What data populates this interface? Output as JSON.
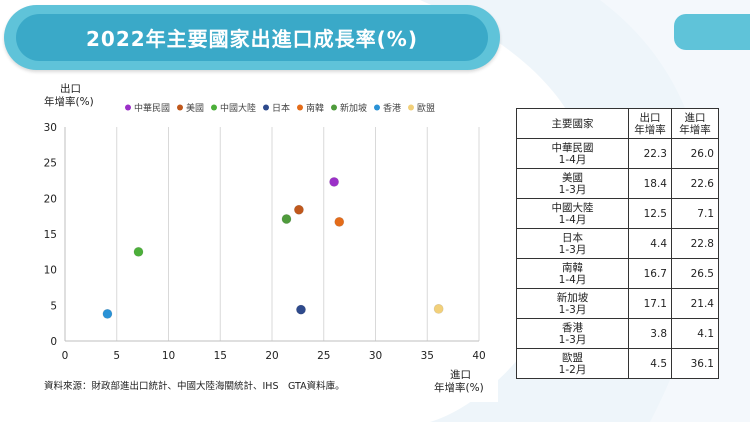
{
  "title": "2022年主要國家出進口成長率(%)",
  "source": "資料來源：財政部進出口統計、中國大陸海關統計、IHS　GTA資料庫。",
  "chart_data": {
    "type": "scatter",
    "ylabel_line1": "出口",
    "ylabel_line2": "年增率(%)",
    "xlabel_line1": "進口",
    "xlabel_line2": "年增率(%)",
    "xlim": [
      0,
      40
    ],
    "ylim": [
      0,
      30
    ],
    "xticks": [
      "0",
      "5",
      "10",
      "15",
      "20",
      "25",
      "30",
      "35",
      "40"
    ],
    "yticks": [
      "0",
      "5",
      "10",
      "15",
      "20",
      "25",
      "30"
    ],
    "grid": "vertical",
    "legend_position": "top",
    "series": [
      {
        "name": "中華民國",
        "color": "#9b30c8",
        "x": 26.0,
        "y": 22.3
      },
      {
        "name": "美國",
        "color": "#c0581c",
        "x": 22.6,
        "y": 18.4
      },
      {
        "name": "中國大陸",
        "color": "#4caf3a",
        "x": 7.1,
        "y": 12.5
      },
      {
        "name": "日本",
        "color": "#2e4a8c",
        "x": 22.8,
        "y": 4.4
      },
      {
        "name": "南韓",
        "color": "#e46c1a",
        "x": 26.5,
        "y": 16.7
      },
      {
        "name": "新加坡",
        "color": "#4f9b3c",
        "x": 21.4,
        "y": 17.1
      },
      {
        "name": "香港",
        "color": "#2a92d6",
        "x": 4.1,
        "y": 3.8
      },
      {
        "name": "歐盟",
        "color": "#f2d07a",
        "x": 36.1,
        "y": 4.5
      }
    ]
  },
  "table": {
    "headers": {
      "country": "主要國家",
      "export_line1": "出口",
      "export_line2": "年增率",
      "import_line1": "進口",
      "import_line2": "年增率"
    },
    "rows": [
      {
        "country": "中華民國",
        "period": "1-4月",
        "export": "22.3",
        "import": "26.0"
      },
      {
        "country": "美國",
        "period": "1-3月",
        "export": "18.4",
        "import": "22.6"
      },
      {
        "country": "中國大陸",
        "period": "1-4月",
        "export": "12.5",
        "import": "7.1"
      },
      {
        "country": "日本",
        "period": "1-3月",
        "export": "4.4",
        "import": "22.8"
      },
      {
        "country": "南韓",
        "period": "1-4月",
        "export": "16.7",
        "import": "26.5"
      },
      {
        "country": "新加坡",
        "period": "1-3月",
        "export": "17.1",
        "import": "21.4"
      },
      {
        "country": "香港",
        "period": "1-3月",
        "export": "3.8",
        "import": "4.1"
      },
      {
        "country": "歐盟",
        "period": "1-2月",
        "export": "4.5",
        "import": "36.1"
      }
    ]
  }
}
